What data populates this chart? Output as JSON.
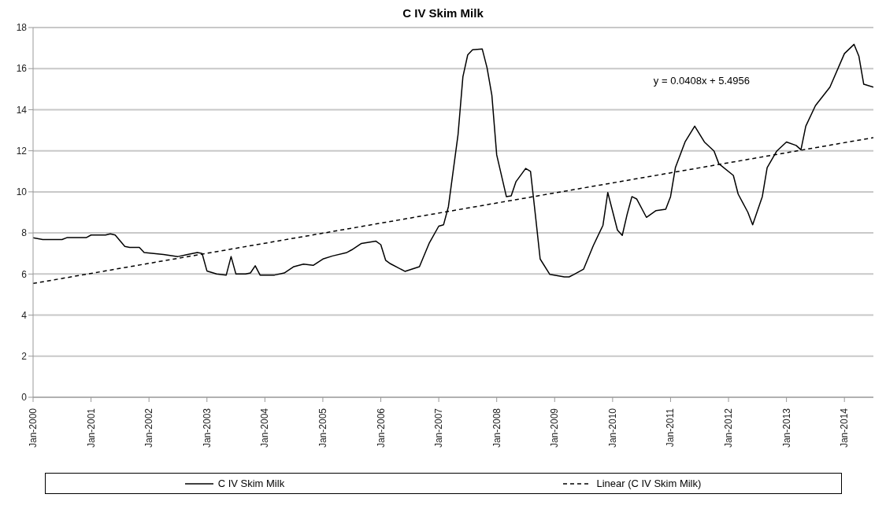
{
  "chart_data": {
    "type": "line",
    "title": "C IV Skim Milk",
    "xlim": [
      "2000-01",
      "2014-07"
    ],
    "xticks": [
      {
        "value": "2000-01",
        "label": "Jan-2000"
      },
      {
        "value": "2001-01",
        "label": "Jan-2001"
      },
      {
        "value": "2002-01",
        "label": "Jan-2002"
      },
      {
        "value": "2003-01",
        "label": "Jan-2003"
      },
      {
        "value": "2004-01",
        "label": "Jan-2004"
      },
      {
        "value": "2005-01",
        "label": "Jan-2005"
      },
      {
        "value": "2006-01",
        "label": "Jan-2006"
      },
      {
        "value": "2007-01",
        "label": "Jan-2007"
      },
      {
        "value": "2008-01",
        "label": "Jan-2008"
      },
      {
        "value": "2009-01",
        "label": "Jan-2009"
      },
      {
        "value": "2010-01",
        "label": "Jan-2010"
      },
      {
        "value": "2011-01",
        "label": "Jan-2011"
      },
      {
        "value": "2012-01",
        "label": "Jan-2012"
      },
      {
        "value": "2013-01",
        "label": "Jan-2013"
      },
      {
        "value": "2014-01",
        "label": "Jan-2014"
      }
    ],
    "ylim": [
      0,
      18
    ],
    "yticks": [
      0,
      2,
      4,
      6,
      8,
      10,
      12,
      14,
      16,
      18
    ],
    "grid": "y",
    "legend": "bottom",
    "marker": "none",
    "annotations": [
      "y = 0.0408x + 5.4956"
    ],
    "series": [
      {
        "name": "C IV Skim Milk",
        "color": "#000000",
        "line_style": "solid",
        "x": [
          "2000-01",
          "2000-03",
          "2000-07",
          "2000-08",
          "2000-12",
          "2001-01",
          "2001-04",
          "2001-05",
          "2001-06",
          "2001-08",
          "2001-09",
          "2001-11",
          "2001-12",
          "2002-04",
          "2002-07",
          "2002-09",
          "2002-11",
          "2002-12",
          "2003-01",
          "2003-03",
          "2003-05",
          "2003-06",
          "2003-07",
          "2003-09",
          "2003-10",
          "2003-11",
          "2003-12",
          "2004-03",
          "2004-05",
          "2004-07",
          "2004-09",
          "2004-11",
          "2005-01",
          "2005-03",
          "2005-06",
          "2005-07",
          "2005-09",
          "2005-12",
          "2006-01",
          "2006-02",
          "2006-03",
          "2006-06",
          "2006-09",
          "2006-11",
          "2007-01",
          "2007-02",
          "2007-03",
          "2007-05",
          "2007-06",
          "2007-07",
          "2007-08",
          "2007-10",
          "2007-11",
          "2007-12",
          "2008-01",
          "2008-03",
          "2008-04",
          "2008-05",
          "2008-07",
          "2008-08",
          "2008-09",
          "2008-10",
          "2008-12",
          "2009-03",
          "2009-04",
          "2009-05",
          "2009-07",
          "2009-09",
          "2009-11",
          "2009-12",
          "2010-02",
          "2010-03",
          "2010-04",
          "2010-05",
          "2010-06",
          "2010-08",
          "2010-10",
          "2010-12",
          "2011-01",
          "2011-02",
          "2011-04",
          "2011-06",
          "2011-08",
          "2011-10",
          "2011-11",
          "2012-02",
          "2012-03",
          "2012-05",
          "2012-06",
          "2012-08",
          "2012-09",
          "2012-11",
          "2013-01",
          "2013-03",
          "2013-04",
          "2013-05",
          "2013-07",
          "2013-10",
          "2014-01",
          "2014-03",
          "2014-04",
          "2014-05",
          "2014-07"
        ],
        "values": [
          7.77,
          7.68,
          7.68,
          7.77,
          7.77,
          7.9,
          7.9,
          7.96,
          7.9,
          7.34,
          7.3,
          7.3,
          7.05,
          6.95,
          6.85,
          6.95,
          7.05,
          7.0,
          6.15,
          6.0,
          5.95,
          6.85,
          6.0,
          6.0,
          6.05,
          6.4,
          5.95,
          5.95,
          6.05,
          6.36,
          6.48,
          6.42,
          6.73,
          6.88,
          7.05,
          7.18,
          7.49,
          7.6,
          7.43,
          6.67,
          6.5,
          6.13,
          6.36,
          7.49,
          8.33,
          8.4,
          9.28,
          12.8,
          15.6,
          16.67,
          16.92,
          16.96,
          16.04,
          14.7,
          11.8,
          9.77,
          9.8,
          10.5,
          11.14,
          11.0,
          8.9,
          6.73,
          5.98,
          5.86,
          5.86,
          5.98,
          6.24,
          7.38,
          8.37,
          9.97,
          8.14,
          7.88,
          8.9,
          9.77,
          9.65,
          8.76,
          9.09,
          9.15,
          9.77,
          11.18,
          12.43,
          13.2,
          12.43,
          11.99,
          11.37,
          10.8,
          9.89,
          9.01,
          8.4,
          9.77,
          11.18,
          11.99,
          12.43,
          12.26,
          12.05,
          13.2,
          14.2,
          15.1,
          16.73,
          17.18,
          16.6,
          15.24,
          15.1
        ]
      },
      {
        "name": "Linear (C IV Skim Milk)",
        "type": "line",
        "color": "#000000",
        "line_style": "dashed",
        "x": [
          "2000-01",
          "2014-07"
        ],
        "values": [
          5.54,
          12.64
        ]
      }
    ]
  }
}
